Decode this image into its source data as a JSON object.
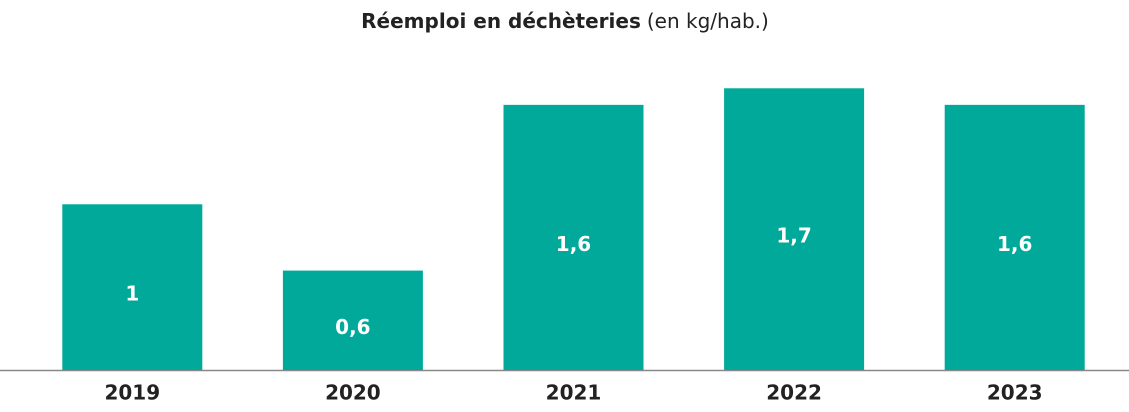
{
  "chart_data": {
    "type": "bar",
    "title": "Réemploi en déchèteries",
    "unit": "(en kg/hab.)",
    "categories": [
      "2019",
      "2020",
      "2021",
      "2022",
      "2023"
    ],
    "values": [
      1,
      0.6,
      1.6,
      1.7,
      1.6
    ],
    "value_labels": [
      "1",
      "0,6",
      "1,6",
      "1,7",
      "1,6"
    ],
    "color": "#00a99a",
    "ylim": [
      0,
      1.75
    ]
  }
}
